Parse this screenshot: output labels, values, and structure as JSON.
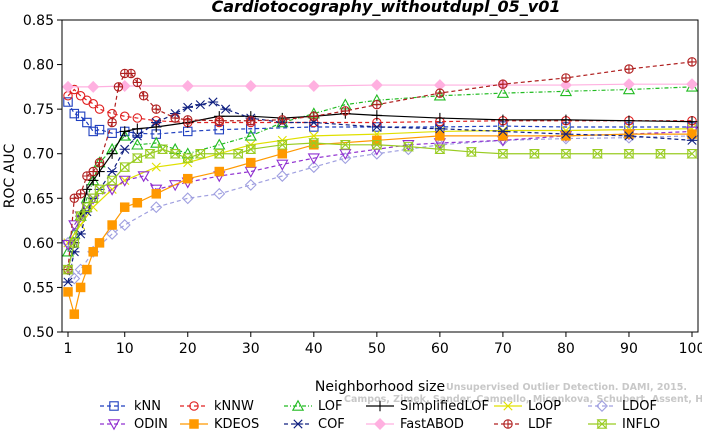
{
  "chart_data": {
    "type": "line",
    "title": "Cardiotocography_withoutdupl_05_v01",
    "xlabel": "Neighborhood size",
    "ylabel": "ROC AUC",
    "xlim": [
      1,
      100
    ],
    "ylim": [
      0.5,
      0.85
    ],
    "x_ticks": [
      1,
      10,
      20,
      30,
      40,
      50,
      60,
      70,
      80,
      90,
      100
    ],
    "y_ticks": [
      0.5,
      0.55,
      0.6,
      0.65,
      0.7,
      0.75,
      0.8,
      0.85
    ],
    "y_tick_labels": [
      "0.50",
      "0.55",
      "0.60",
      "0.65",
      "0.70",
      "0.75",
      "0.80",
      "0.85"
    ],
    "grid": false,
    "legend_position": "bottom",
    "series": [
      {
        "name": "kNN",
        "color": "#1f3fbf",
        "marker": "square",
        "dash": "4,3",
        "points": [
          [
            1,
            0.758
          ],
          [
            2,
            0.745
          ],
          [
            3,
            0.742
          ],
          [
            4,
            0.735
          ],
          [
            5,
            0.725
          ],
          [
            6,
            0.727
          ],
          [
            8,
            0.723
          ],
          [
            10,
            0.725
          ],
          [
            12,
            0.723
          ],
          [
            15,
            0.722
          ],
          [
            20,
            0.725
          ],
          [
            25,
            0.727
          ],
          [
            30,
            0.728
          ],
          [
            40,
            0.73
          ],
          [
            50,
            0.73
          ],
          [
            60,
            0.73
          ],
          [
            70,
            0.731
          ],
          [
            80,
            0.73
          ],
          [
            90,
            0.73
          ],
          [
            100,
            0.73
          ]
        ]
      },
      {
        "name": "kNNW",
        "color": "#e02020",
        "marker": "circle",
        "dash": "4,3",
        "points": [
          [
            1,
            0.765
          ],
          [
            2,
            0.772
          ],
          [
            3,
            0.765
          ],
          [
            4,
            0.76
          ],
          [
            5,
            0.756
          ],
          [
            6,
            0.75
          ],
          [
            8,
            0.745
          ],
          [
            10,
            0.742
          ],
          [
            12,
            0.74
          ],
          [
            15,
            0.737
          ],
          [
            20,
            0.735
          ],
          [
            25,
            0.735
          ],
          [
            30,
            0.735
          ],
          [
            40,
            0.735
          ],
          [
            50,
            0.735
          ],
          [
            60,
            0.736
          ],
          [
            70,
            0.737
          ],
          [
            80,
            0.737
          ],
          [
            90,
            0.737
          ],
          [
            100,
            0.737
          ]
        ]
      },
      {
        "name": "LOF",
        "color": "#22bb22",
        "marker": "triangle",
        "dash": "4,2,1,2",
        "points": [
          [
            1,
            0.59
          ],
          [
            2,
            0.61
          ],
          [
            3,
            0.63
          ],
          [
            4,
            0.65
          ],
          [
            5,
            0.67
          ],
          [
            6,
            0.69
          ],
          [
            8,
            0.705
          ],
          [
            10,
            0.72
          ],
          [
            12,
            0.71
          ],
          [
            15,
            0.712
          ],
          [
            18,
            0.705
          ],
          [
            20,
            0.7
          ],
          [
            25,
            0.71
          ],
          [
            30,
            0.72
          ],
          [
            35,
            0.735
          ],
          [
            40,
            0.745
          ],
          [
            45,
            0.755
          ],
          [
            50,
            0.76
          ],
          [
            60,
            0.765
          ],
          [
            70,
            0.768
          ],
          [
            80,
            0.77
          ],
          [
            90,
            0.772
          ],
          [
            100,
            0.775
          ]
        ]
      },
      {
        "name": "SimplifiedLOF",
        "color": "#000000",
        "marker": "plus",
        "dash": "",
        "points": [
          [
            1,
            0.57
          ],
          [
            2,
            0.6
          ],
          [
            3,
            0.63
          ],
          [
            4,
            0.66
          ],
          [
            5,
            0.67
          ],
          [
            6,
            0.68
          ],
          [
            8,
            0.7
          ],
          [
            10,
            0.725
          ],
          [
            12,
            0.728
          ],
          [
            15,
            0.73
          ],
          [
            20,
            0.735
          ],
          [
            25,
            0.742
          ],
          [
            30,
            0.742
          ],
          [
            35,
            0.74
          ],
          [
            40,
            0.742
          ],
          [
            45,
            0.745
          ],
          [
            50,
            0.743
          ],
          [
            60,
            0.74
          ],
          [
            70,
            0.738
          ],
          [
            80,
            0.738
          ],
          [
            90,
            0.737
          ],
          [
            100,
            0.736
          ]
        ]
      },
      {
        "name": "LoOP",
        "color": "#e0e000",
        "marker": "x",
        "dash": "",
        "points": [
          [
            1,
            0.6
          ],
          [
            3,
            0.62
          ],
          [
            5,
            0.64
          ],
          [
            8,
            0.66
          ],
          [
            10,
            0.67
          ],
          [
            15,
            0.685
          ],
          [
            20,
            0.69
          ],
          [
            25,
            0.7
          ],
          [
            30,
            0.71
          ],
          [
            35,
            0.715
          ],
          [
            40,
            0.72
          ],
          [
            50,
            0.722
          ],
          [
            60,
            0.725
          ],
          [
            70,
            0.726
          ],
          [
            80,
            0.726
          ],
          [
            90,
            0.727
          ],
          [
            100,
            0.728
          ]
        ]
      },
      {
        "name": "LDOF",
        "color": "#a0a0e0",
        "marker": "diamond",
        "dash": "4,3",
        "points": [
          [
            1,
            0.6
          ],
          [
            2,
            0.56
          ],
          [
            3,
            0.57
          ],
          [
            5,
            0.59
          ],
          [
            8,
            0.61
          ],
          [
            10,
            0.62
          ],
          [
            15,
            0.64
          ],
          [
            20,
            0.65
          ],
          [
            25,
            0.655
          ],
          [
            30,
            0.665
          ],
          [
            35,
            0.675
          ],
          [
            40,
            0.685
          ],
          [
            45,
            0.695
          ],
          [
            50,
            0.7
          ],
          [
            55,
            0.705
          ],
          [
            60,
            0.71
          ],
          [
            70,
            0.715
          ],
          [
            80,
            0.717
          ],
          [
            90,
            0.718
          ],
          [
            100,
            0.72
          ]
        ]
      },
      {
        "name": "ODIN",
        "color": "#9030d0",
        "marker": "triangle-down",
        "dash": "4,3",
        "points": [
          [
            1,
            0.598
          ],
          [
            2,
            0.62
          ],
          [
            3,
            0.63
          ],
          [
            4,
            0.64
          ],
          [
            5,
            0.65
          ],
          [
            8,
            0.66
          ],
          [
            10,
            0.67
          ],
          [
            13,
            0.675
          ],
          [
            15,
            0.66
          ],
          [
            18,
            0.665
          ],
          [
            20,
            0.668
          ],
          [
            25,
            0.675
          ],
          [
            30,
            0.68
          ],
          [
            35,
            0.688
          ],
          [
            40,
            0.695
          ],
          [
            45,
            0.7
          ],
          [
            50,
            0.705
          ],
          [
            55,
            0.71
          ],
          [
            60,
            0.712
          ],
          [
            70,
            0.715
          ],
          [
            80,
            0.72
          ],
          [
            90,
            0.722
          ],
          [
            100,
            0.725
          ]
        ]
      },
      {
        "name": "KDEOS",
        "color": "#ff9900",
        "marker": "square-filled",
        "dash": "",
        "points": [
          [
            1,
            0.545
          ],
          [
            2,
            0.52
          ],
          [
            3,
            0.55
          ],
          [
            4,
            0.57
          ],
          [
            5,
            0.59
          ],
          [
            6,
            0.6
          ],
          [
            8,
            0.62
          ],
          [
            10,
            0.64
          ],
          [
            12,
            0.645
          ],
          [
            15,
            0.655
          ],
          [
            20,
            0.672
          ],
          [
            25,
            0.68
          ],
          [
            30,
            0.69
          ],
          [
            35,
            0.7
          ],
          [
            40,
            0.71
          ],
          [
            50,
            0.715
          ],
          [
            60,
            0.72
          ],
          [
            70,
            0.72
          ],
          [
            80,
            0.72
          ],
          [
            90,
            0.722
          ],
          [
            100,
            0.722
          ]
        ]
      },
      {
        "name": "COF",
        "color": "#102080",
        "marker": "asterisk",
        "dash": "4,3",
        "points": [
          [
            1,
            0.556
          ],
          [
            2,
            0.59
          ],
          [
            3,
            0.61
          ],
          [
            4,
            0.635
          ],
          [
            5,
            0.65
          ],
          [
            6,
            0.66
          ],
          [
            8,
            0.68
          ],
          [
            10,
            0.705
          ],
          [
            12,
            0.72
          ],
          [
            15,
            0.735
          ],
          [
            18,
            0.745
          ],
          [
            20,
            0.752
          ],
          [
            22,
            0.755
          ],
          [
            24,
            0.758
          ],
          [
            26,
            0.75
          ],
          [
            30,
            0.74
          ],
          [
            35,
            0.735
          ],
          [
            40,
            0.735
          ],
          [
            50,
            0.73
          ],
          [
            60,
            0.728
          ],
          [
            70,
            0.725
          ],
          [
            80,
            0.722
          ],
          [
            90,
            0.72
          ],
          [
            100,
            0.715
          ]
        ]
      },
      {
        "name": "FastABOD",
        "color": "#ffb0e0",
        "marker": "diamond-filled",
        "dash": "",
        "points": [
          [
            1,
            0.775
          ],
          [
            5,
            0.775
          ],
          [
            10,
            0.776
          ],
          [
            20,
            0.776
          ],
          [
            30,
            0.776
          ],
          [
            40,
            0.776
          ],
          [
            50,
            0.777
          ],
          [
            60,
            0.777
          ],
          [
            70,
            0.777
          ],
          [
            80,
            0.777
          ],
          [
            90,
            0.778
          ],
          [
            100,
            0.778
          ]
        ]
      },
      {
        "name": "LDF",
        "color": "#b02020",
        "marker": "circle-plus",
        "dash": "4,3",
        "points": [
          [
            1,
            0.57
          ],
          [
            2,
            0.65
          ],
          [
            3,
            0.655
          ],
          [
            4,
            0.675
          ],
          [
            5,
            0.68
          ],
          [
            6,
            0.69
          ],
          [
            8,
            0.735
          ],
          [
            9,
            0.775
          ],
          [
            10,
            0.79
          ],
          [
            11,
            0.79
          ],
          [
            12,
            0.78
          ],
          [
            13,
            0.765
          ],
          [
            15,
            0.75
          ],
          [
            18,
            0.74
          ],
          [
            20,
            0.738
          ],
          [
            25,
            0.737
          ],
          [
            30,
            0.737
          ],
          [
            35,
            0.738
          ],
          [
            40,
            0.742
          ],
          [
            45,
            0.748
          ],
          [
            50,
            0.755
          ],
          [
            60,
            0.768
          ],
          [
            70,
            0.778
          ],
          [
            80,
            0.785
          ],
          [
            90,
            0.795
          ],
          [
            100,
            0.803
          ]
        ]
      },
      {
        "name": "INFLO",
        "color": "#99cc22",
        "marker": "hourglass",
        "dash": "",
        "points": [
          [
            1,
            0.57
          ],
          [
            2,
            0.6
          ],
          [
            3,
            0.63
          ],
          [
            4,
            0.64
          ],
          [
            5,
            0.65
          ],
          [
            6,
            0.66
          ],
          [
            8,
            0.67
          ],
          [
            10,
            0.685
          ],
          [
            12,
            0.695
          ],
          [
            14,
            0.7
          ],
          [
            16,
            0.705
          ],
          [
            18,
            0.7
          ],
          [
            20,
            0.695
          ],
          [
            22,
            0.7
          ],
          [
            25,
            0.7
          ],
          [
            28,
            0.7
          ],
          [
            30,
            0.705
          ],
          [
            35,
            0.71
          ],
          [
            40,
            0.712
          ],
          [
            45,
            0.71
          ],
          [
            50,
            0.71
          ],
          [
            55,
            0.708
          ],
          [
            60,
            0.705
          ],
          [
            65,
            0.702
          ],
          [
            70,
            0.7
          ],
          [
            75,
            0.7
          ],
          [
            80,
            0.7
          ],
          [
            85,
            0.7
          ],
          [
            90,
            0.7
          ],
          [
            95,
            0.7
          ],
          [
            100,
            0.7
          ]
        ]
      }
    ],
    "annotation": "Campos, Zimek, Sander, Campello, Micenkova, Schubert, Assent, Houle",
    "annotation_2": "Unsupervised Outlier Detection. DAMI, 2015."
  }
}
